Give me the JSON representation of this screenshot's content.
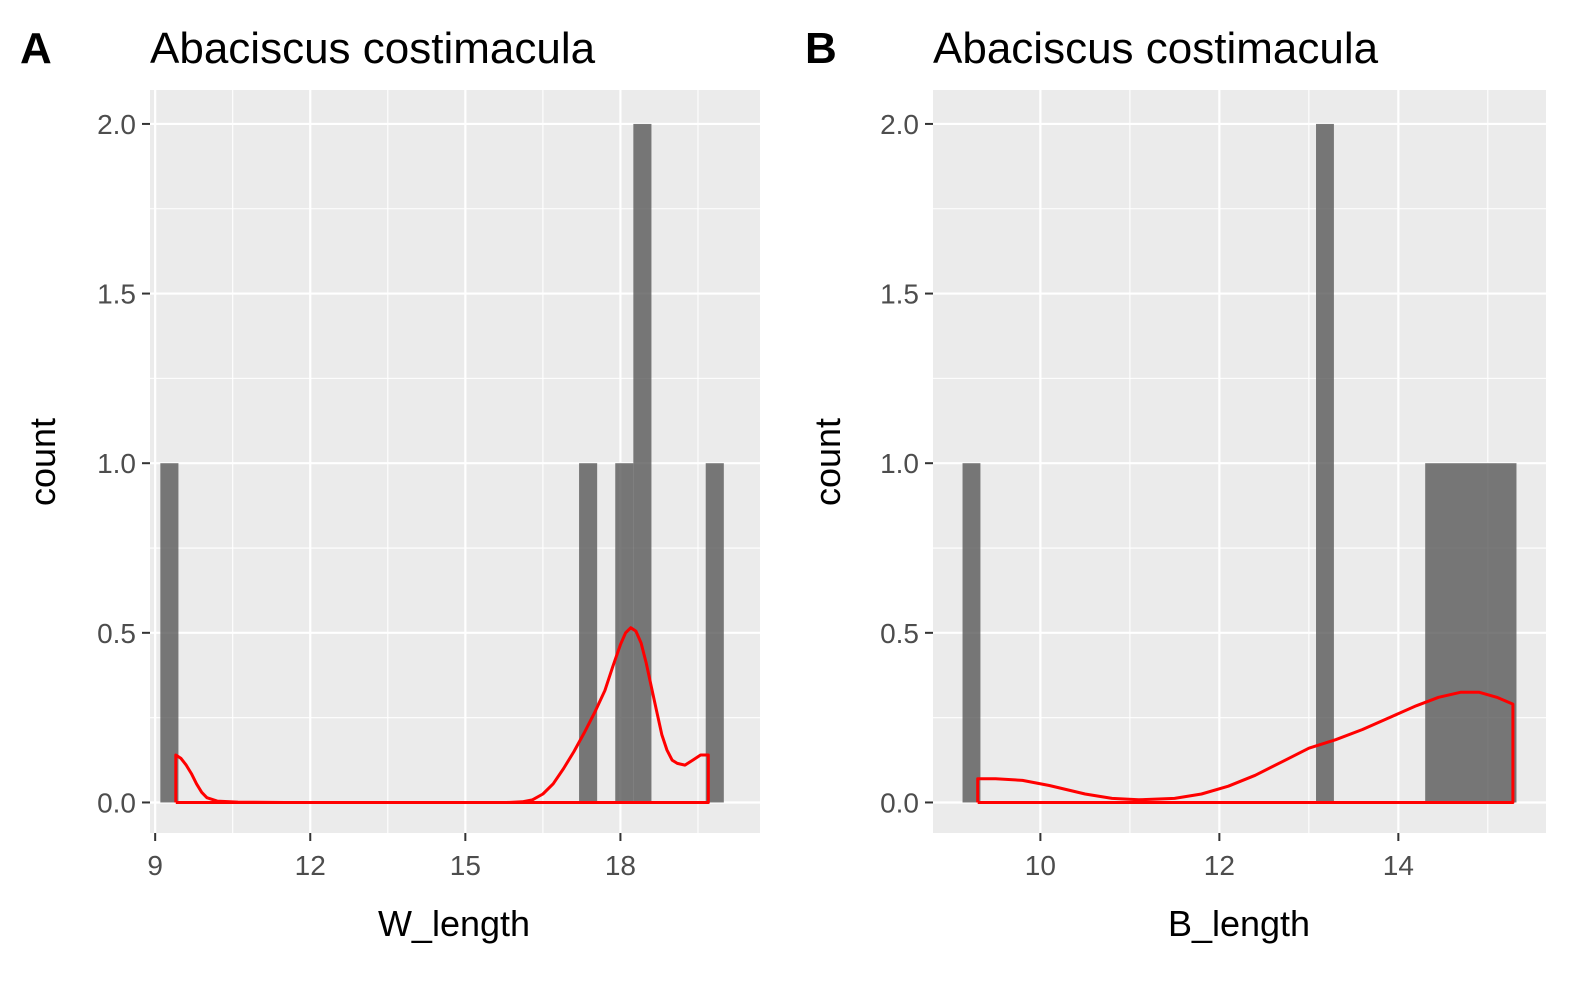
{
  "chart_data": [
    {
      "type": "bar",
      "panel": "A",
      "title": "Abaciscus costimacula",
      "xlabel": "W_length",
      "ylabel": "count",
      "xlim": [
        8.9,
        20.7
      ],
      "ylim": [
        -0.09,
        2.1
      ],
      "xticks": [
        9,
        12,
        15,
        18
      ],
      "yticks": [
        0.0,
        0.5,
        1.0,
        1.5,
        2.0
      ],
      "ytick_labels": [
        "0.0",
        "0.5",
        "1.0",
        "1.5",
        "2.0"
      ],
      "bars": [
        {
          "x0": 9.1,
          "x1": 9.45,
          "count": 1
        },
        {
          "x0": 17.2,
          "x1": 17.55,
          "count": 1
        },
        {
          "x0": 17.9,
          "x1": 18.25,
          "count": 1
        },
        {
          "x0": 18.25,
          "x1": 18.6,
          "count": 2
        },
        {
          "x0": 19.65,
          "x1": 20.0,
          "count": 1
        }
      ],
      "density": [
        [
          9.4,
          0
        ],
        [
          9.4,
          0.14
        ],
        [
          9.5,
          0.13
        ],
        [
          9.6,
          0.11
        ],
        [
          9.7,
          0.085
        ],
        [
          9.8,
          0.055
        ],
        [
          9.9,
          0.03
        ],
        [
          10.0,
          0.014
        ],
        [
          10.2,
          0.004
        ],
        [
          10.6,
          0.001
        ],
        [
          11.5,
          0
        ],
        [
          13,
          0
        ],
        [
          15,
          0
        ],
        [
          15.8,
          0
        ],
        [
          16.1,
          0.002
        ],
        [
          16.3,
          0.008
        ],
        [
          16.5,
          0.025
        ],
        [
          16.7,
          0.055
        ],
        [
          16.9,
          0.1
        ],
        [
          17.1,
          0.15
        ],
        [
          17.3,
          0.205
        ],
        [
          17.5,
          0.265
        ],
        [
          17.7,
          0.33
        ],
        [
          17.85,
          0.4
        ],
        [
          18.0,
          0.465
        ],
        [
          18.1,
          0.5
        ],
        [
          18.2,
          0.515
        ],
        [
          18.3,
          0.505
        ],
        [
          18.4,
          0.47
        ],
        [
          18.5,
          0.41
        ],
        [
          18.6,
          0.34
        ],
        [
          18.7,
          0.27
        ],
        [
          18.8,
          0.2
        ],
        [
          18.9,
          0.155
        ],
        [
          19.0,
          0.125
        ],
        [
          19.1,
          0.115
        ],
        [
          19.25,
          0.11
        ],
        [
          19.4,
          0.125
        ],
        [
          19.55,
          0.14
        ],
        [
          19.7,
          0.14
        ],
        [
          19.7,
          0
        ],
        [
          9.4,
          0
        ]
      ],
      "density_color": "#ff0000",
      "bar_color": "#595959"
    },
    {
      "type": "bar",
      "panel": "B",
      "title": "Abaciscus costimacula",
      "xlabel": "B_length",
      "ylabel": "count",
      "xlim": [
        8.8,
        15.65
      ],
      "ylim": [
        -0.09,
        2.1
      ],
      "xticks": [
        10,
        12,
        14
      ],
      "yticks": [
        0.0,
        0.5,
        1.0,
        1.5,
        2.0
      ],
      "ytick_labels": [
        "0.0",
        "0.5",
        "1.0",
        "1.5",
        "2.0"
      ],
      "bars": [
        {
          "x0": 9.13,
          "x1": 9.33,
          "count": 1
        },
        {
          "x0": 13.08,
          "x1": 13.28,
          "count": 2
        },
        {
          "x0": 14.3,
          "x1": 15.32,
          "count": 1
        }
      ],
      "density": [
        [
          9.3,
          0
        ],
        [
          9.3,
          0.07
        ],
        [
          9.5,
          0.07
        ],
        [
          9.8,
          0.065
        ],
        [
          10.1,
          0.05
        ],
        [
          10.5,
          0.025
        ],
        [
          10.8,
          0.012
        ],
        [
          11.1,
          0.008
        ],
        [
          11.5,
          0.012
        ],
        [
          11.8,
          0.025
        ],
        [
          12.1,
          0.048
        ],
        [
          12.4,
          0.08
        ],
        [
          12.7,
          0.12
        ],
        [
          13.0,
          0.16
        ],
        [
          13.3,
          0.185
        ],
        [
          13.6,
          0.215
        ],
        [
          13.9,
          0.25
        ],
        [
          14.2,
          0.285
        ],
        [
          14.45,
          0.31
        ],
        [
          14.7,
          0.325
        ],
        [
          14.9,
          0.325
        ],
        [
          15.1,
          0.31
        ],
        [
          15.28,
          0.29
        ],
        [
          15.28,
          0
        ],
        [
          9.3,
          0
        ]
      ],
      "density_color": "#ff0000",
      "bar_color": "#595959"
    }
  ]
}
